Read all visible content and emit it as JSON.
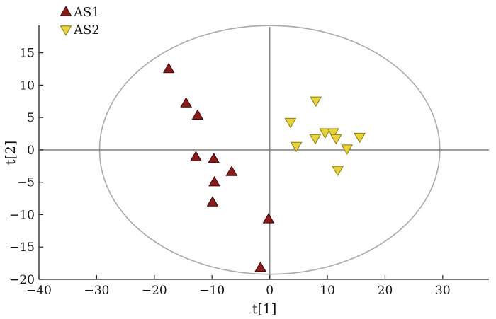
{
  "chart_data": {
    "type": "scatter",
    "title": "",
    "xlabel": "t[1]",
    "ylabel": "t[2]",
    "xlim": [
      -40,
      38
    ],
    "ylim": [
      -20,
      19
    ],
    "xticks": [
      -40,
      -30,
      -20,
      -10,
      0,
      10,
      20,
      30
    ],
    "yticks": [
      -20,
      -15,
      -10,
      -5,
      0,
      5,
      10,
      15
    ],
    "xtick_labels": [
      "−40",
      "−30",
      "−20",
      "−10",
      "0",
      "10",
      "20",
      "30"
    ],
    "ytick_labels": [
      "−20",
      "−15",
      "−10",
      "−5",
      "0",
      "5",
      "10",
      "15"
    ],
    "grid": false,
    "legend_position": "top-left",
    "confidence_ellipse": {
      "center": [
        0,
        0
      ],
      "rx": 29.5,
      "ry": 19.2,
      "color": "#a9a9a9"
    },
    "series": [
      {
        "name": "AS1",
        "marker": "triangle-up",
        "color": "#8b1a1a",
        "points": [
          [
            -17.5,
            12.5
          ],
          [
            -14.5,
            7.2
          ],
          [
            -12.5,
            5.3
          ],
          [
            -12.8,
            -1.1
          ],
          [
            -9.7,
            -1.4
          ],
          [
            -6.6,
            -3.4
          ],
          [
            -9.6,
            -5.0
          ],
          [
            -9.9,
            -8.1
          ],
          [
            -0.2,
            -10.7
          ],
          [
            -1.6,
            -18.2
          ]
        ]
      },
      {
        "name": "AS2",
        "marker": "triangle-down",
        "color": "#e6d43a",
        "points": [
          [
            8.0,
            7.6
          ],
          [
            3.6,
            4.3
          ],
          [
            9.6,
            2.7
          ],
          [
            11.0,
            2.7
          ],
          [
            7.9,
            1.8
          ],
          [
            11.5,
            1.8
          ],
          [
            15.6,
            2.0
          ],
          [
            4.6,
            0.6
          ],
          [
            13.4,
            0.2
          ],
          [
            11.8,
            -3.1
          ]
        ]
      }
    ]
  }
}
